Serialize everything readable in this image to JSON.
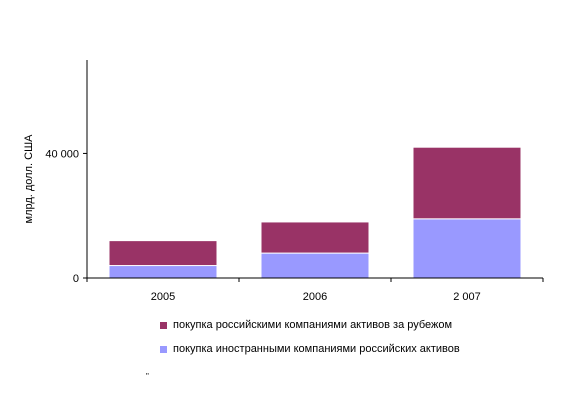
{
  "chart_data": {
    "type": "bar",
    "stacked": true,
    "categories": [
      "2005",
      "2006",
      "2 007"
    ],
    "series": [
      {
        "name": "покупка иностранными компаниями российских активов",
        "color": "#9999ff",
        "values": [
          4000,
          8000,
          19000
        ]
      },
      {
        "name": "покупка российскими компаниями активов за рубежом",
        "color": "#993366",
        "values": [
          8000,
          10000,
          23000
        ]
      }
    ],
    "title": "",
    "xlabel": "",
    "ylabel": "млрд. долл. США",
    "ylim": [
      0,
      70000
    ],
    "yticks": [
      {
        "value": 0,
        "label": "0"
      },
      {
        "value": 40000,
        "label": "40 000"
      }
    ],
    "grid": false,
    "legend_position": "bottom"
  },
  "legend_order": [
    1,
    0
  ],
  "stray_mark": "\""
}
